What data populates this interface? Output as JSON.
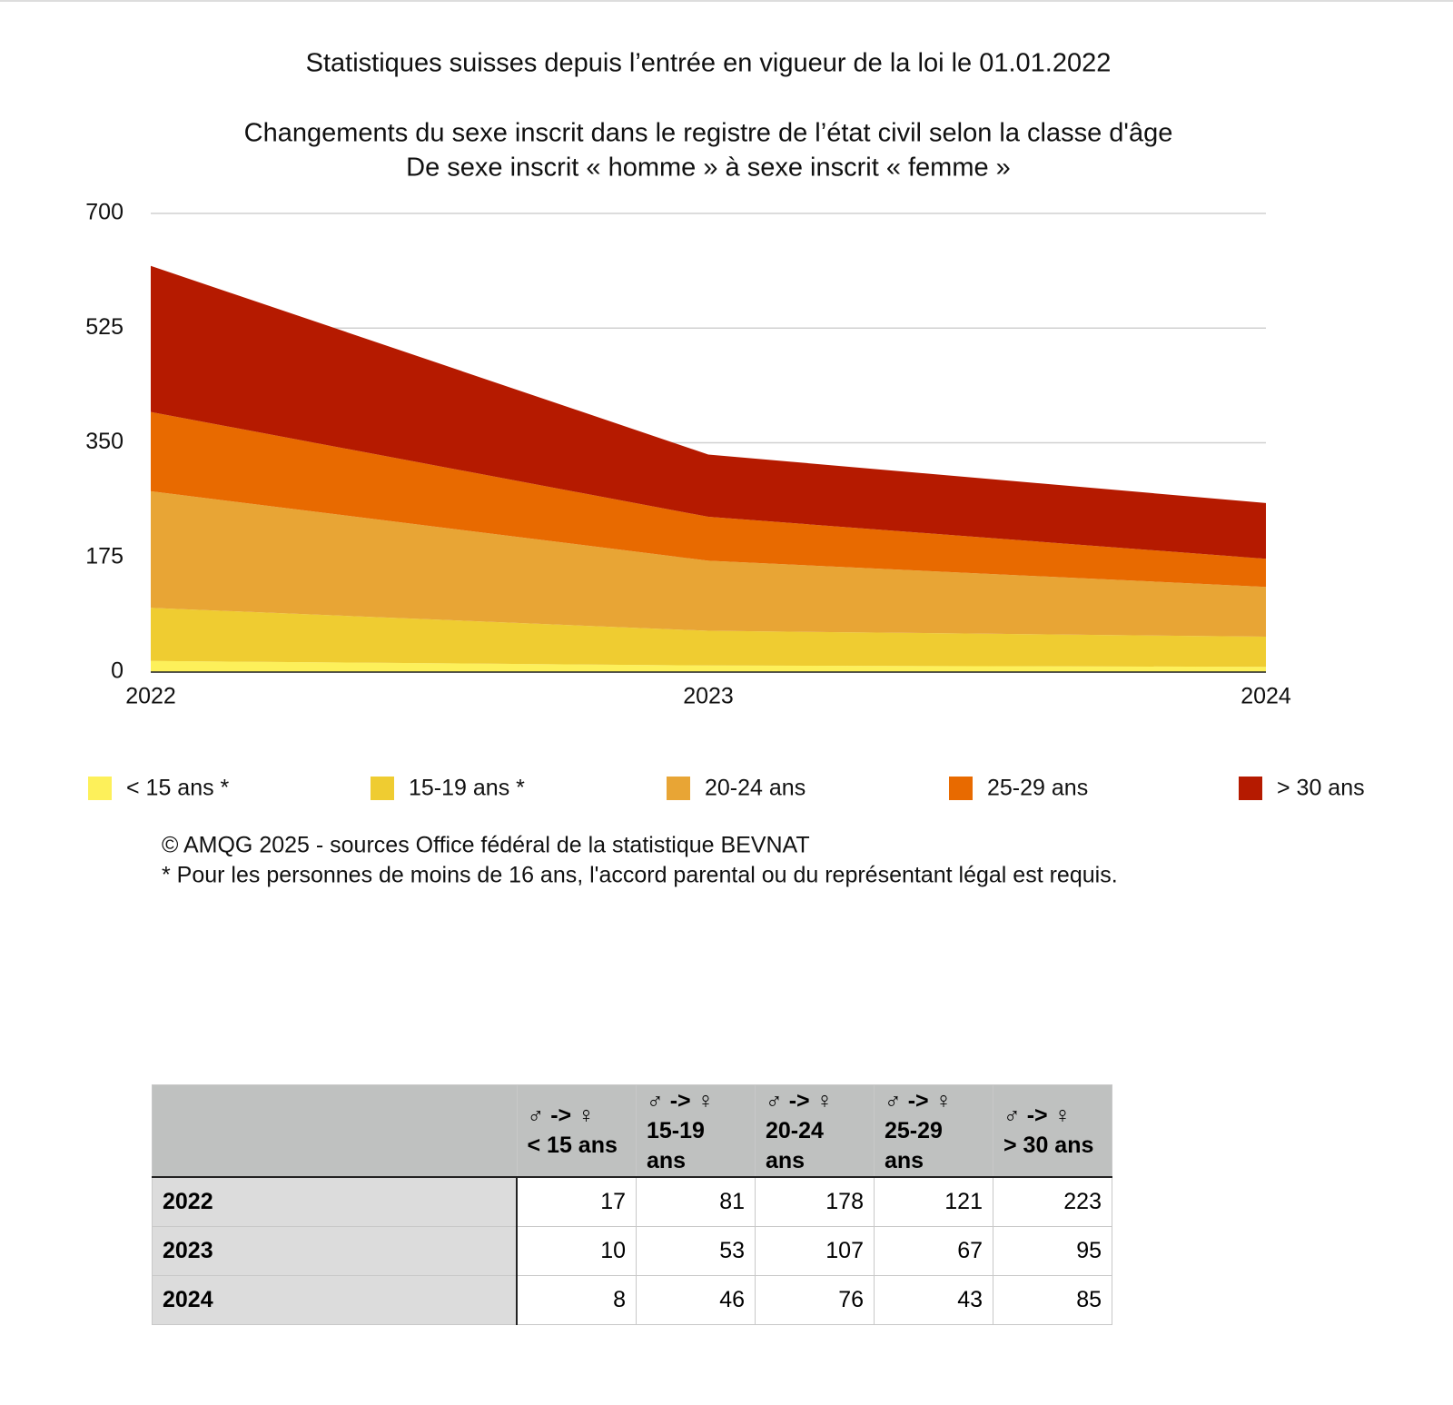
{
  "chart_data": {
    "type": "stacked-area",
    "title": "Statistiques suisses depuis l’entrée en vigueur de la loi le 01.01.2022",
    "subtitle": [
      "Changements du sexe inscrit dans le registre de l’état civil selon la classe d'âge",
      "De sexe inscrit « homme » à sexe inscrit « femme »"
    ],
    "categories": [
      "2022",
      "2023",
      "2024"
    ],
    "series": [
      {
        "name": "< 15 ans *",
        "color": "#fdf05a",
        "values": [
          17,
          10,
          8
        ]
      },
      {
        "name": "15-19 ans *",
        "color": "#efcc31",
        "values": [
          81,
          53,
          46
        ]
      },
      {
        "name": "20-24 ans",
        "color": "#e8a535",
        "values": [
          178,
          107,
          76
        ]
      },
      {
        "name": "25-29 ans",
        "color": "#e86a00",
        "values": [
          121,
          67,
          43
        ]
      },
      {
        "name": "> 30 ans",
        "color": "#b51a00",
        "values": [
          223,
          95,
          85
        ]
      }
    ],
    "ylim": [
      0,
      700
    ],
    "yticks": [
      0,
      175,
      350,
      525,
      700
    ],
    "grid": true,
    "notes": [
      "© AMQG 2025 - sources Office fédéral de la statistique BEVNAT",
      "* Pour les personnes de moins de 16 ans, l'accord parental ou du représentant légal est requis."
    ]
  },
  "table": {
    "columns": [
      {
        "symbol": "♂ -> ♀",
        "label": "< 15 ans"
      },
      {
        "symbol": "♂ -> ♀",
        "label": "15-19 ans"
      },
      {
        "symbol": "♂ -> ♀",
        "label": "20-24 ans"
      },
      {
        "symbol": "♂ -> ♀",
        "label": "25-29 ans"
      },
      {
        "symbol": "♂ -> ♀",
        "label": "> 30 ans"
      }
    ]
  }
}
